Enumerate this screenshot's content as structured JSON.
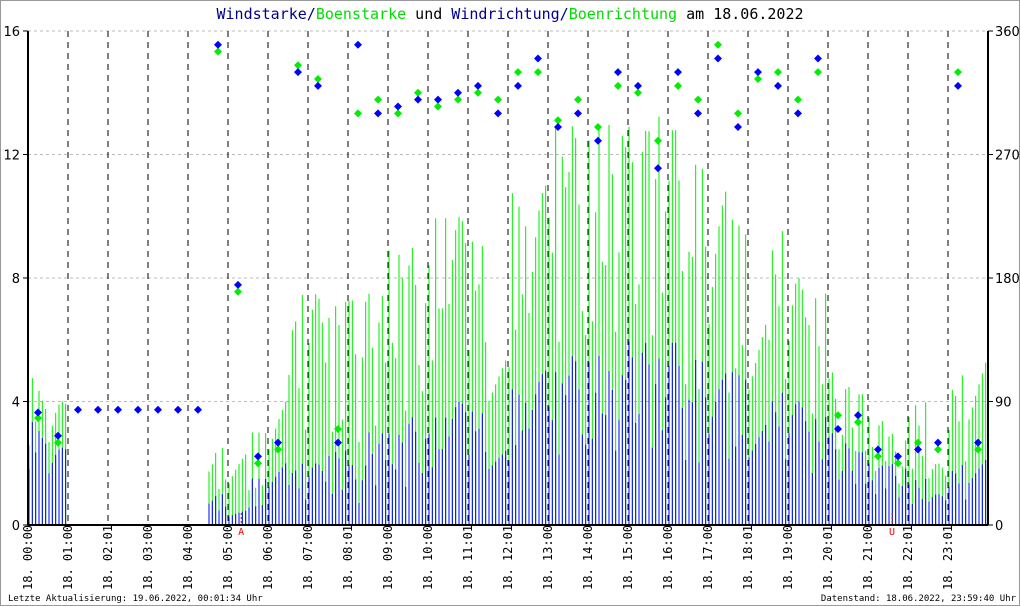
{
  "chart_data": {
    "type": "line",
    "title_parts": [
      {
        "text": "Windstarke",
        "color": "#00008b"
      },
      {
        "text": "/",
        "color": "#00008b"
      },
      {
        "text": "Boenstarke",
        "color": "#00dd00"
      },
      {
        "text": " und ",
        "color": "#000000"
      },
      {
        "text": "Windrichtung",
        "color": "#00008b"
      },
      {
        "text": "/",
        "color": "#00008b"
      },
      {
        "text": "Boenrichtung",
        "color": "#00dd00"
      },
      {
        "text": " am 18.06.2022",
        "color": "#000000"
      }
    ],
    "y_left": {
      "range": [
        0,
        16
      ],
      "ticks": [
        "0",
        "4",
        "8",
        "12",
        "16"
      ]
    },
    "y_right": {
      "range": [
        0,
        360
      ],
      "ticks": [
        "0",
        "90",
        "180",
        "270",
        "360"
      ]
    },
    "x_range_hours": [
      0,
      24
    ],
    "x_ticks": [
      "18. 00:00",
      "18. 01:00",
      "18. 02:01",
      "18. 03:00",
      "18. 04:00",
      "18. 05:00",
      "18. 06:00",
      "18. 07:00",
      "18. 08:01",
      "18. 09:00",
      "18. 10:00",
      "18. 11:01",
      "18. 12:01",
      "18. 13:00",
      "18. 14:00",
      "18. 15:00",
      "18. 16:00",
      "18. 17:00",
      "18. 18:01",
      "18. 19:00",
      "18. 20:01",
      "18. 21:00",
      "18. 22:01",
      "18. 23:01"
    ],
    "markers": [
      {
        "label": "A",
        "hour": 5.33,
        "color": "#ff0000"
      },
      {
        "label": "U",
        "hour": 21.6,
        "color": "#ff0000"
      }
    ],
    "grid": true,
    "x_hours": [
      0,
      0.5,
      1,
      1.5,
      2,
      2.5,
      3,
      3.5,
      4,
      4.5,
      5,
      5.5,
      6,
      6.5,
      7,
      7.5,
      8,
      8.5,
      9,
      9.5,
      10,
      10.5,
      11,
      11.5,
      12,
      12.5,
      13,
      13.5,
      14,
      14.5,
      15,
      15.5,
      16,
      16.5,
      17,
      17.5,
      18,
      18.5,
      19,
      19.5,
      20,
      20.5,
      21,
      21.5,
      22,
      22.5,
      23,
      23.5
    ],
    "series": [
      {
        "name": "Windstarke",
        "color": "#0000ff",
        "kind": "bars",
        "values": [
          3.5,
          2.5,
          0,
          0,
          0,
          0,
          0,
          0,
          0,
          1,
          0.5,
          1.5,
          2.5,
          2,
          2,
          2.5,
          2,
          3,
          3,
          3.5,
          3.5,
          4,
          4,
          4.5,
          4.5,
          5,
          5,
          5.5,
          5.5,
          5,
          6,
          5.5,
          6,
          5.5,
          5,
          5,
          5,
          4.5,
          4,
          3.5,
          3,
          2.5,
          2,
          2,
          1.5,
          1,
          2,
          3
        ]
      },
      {
        "name": "Boenstarke",
        "color": "#00ee00",
        "kind": "bars",
        "values": [
          5,
          4,
          0,
          0,
          0,
          0,
          0,
          0,
          0,
          2.5,
          2.5,
          3,
          5,
          7.5,
          7.5,
          7.5,
          7.5,
          7.5,
          9,
          9,
          10,
          10,
          10,
          10,
          11,
          11,
          13,
          13,
          13,
          13,
          13,
          13.5,
          13,
          12,
          11,
          10,
          10,
          10,
          8,
          7.5,
          5,
          4.5,
          3.5,
          3,
          4,
          2,
          5,
          7.5
        ]
      },
      {
        "name": "Windrichtung",
        "color": "#0000ff",
        "kind": "points",
        "unit": "deg",
        "values": [
          82,
          65,
          84,
          84,
          84,
          84,
          84,
          84,
          84,
          350,
          175,
          50,
          60,
          330,
          320,
          60,
          350,
          300,
          305,
          310,
          310,
          315,
          320,
          300,
          320,
          340,
          290,
          300,
          280,
          330,
          320,
          260,
          330,
          300,
          340,
          290,
          330,
          320,
          300,
          340,
          70,
          80,
          55,
          50,
          55,
          60,
          320,
          60
        ]
      },
      {
        "name": "Boenrichtung",
        "color": "#00ee00",
        "kind": "points",
        "unit": "deg",
        "values": [
          78,
          60,
          null,
          null,
          null,
          null,
          null,
          null,
          null,
          345,
          170,
          45,
          55,
          335,
          325,
          70,
          300,
          310,
          300,
          315,
          305,
          310,
          315,
          310,
          330,
          330,
          295,
          310,
          290,
          320,
          315,
          280,
          320,
          310,
          350,
          300,
          325,
          330,
          310,
          330,
          80,
          75,
          50,
          45,
          60,
          55,
          330,
          55
        ]
      }
    ]
  },
  "footer": {
    "left": "Letzte Aktualisierung: 19.06.2022, 00:01:34 Uhr",
    "right": "Datenstand: 18.06.2022, 23:59:40 Uhr"
  }
}
